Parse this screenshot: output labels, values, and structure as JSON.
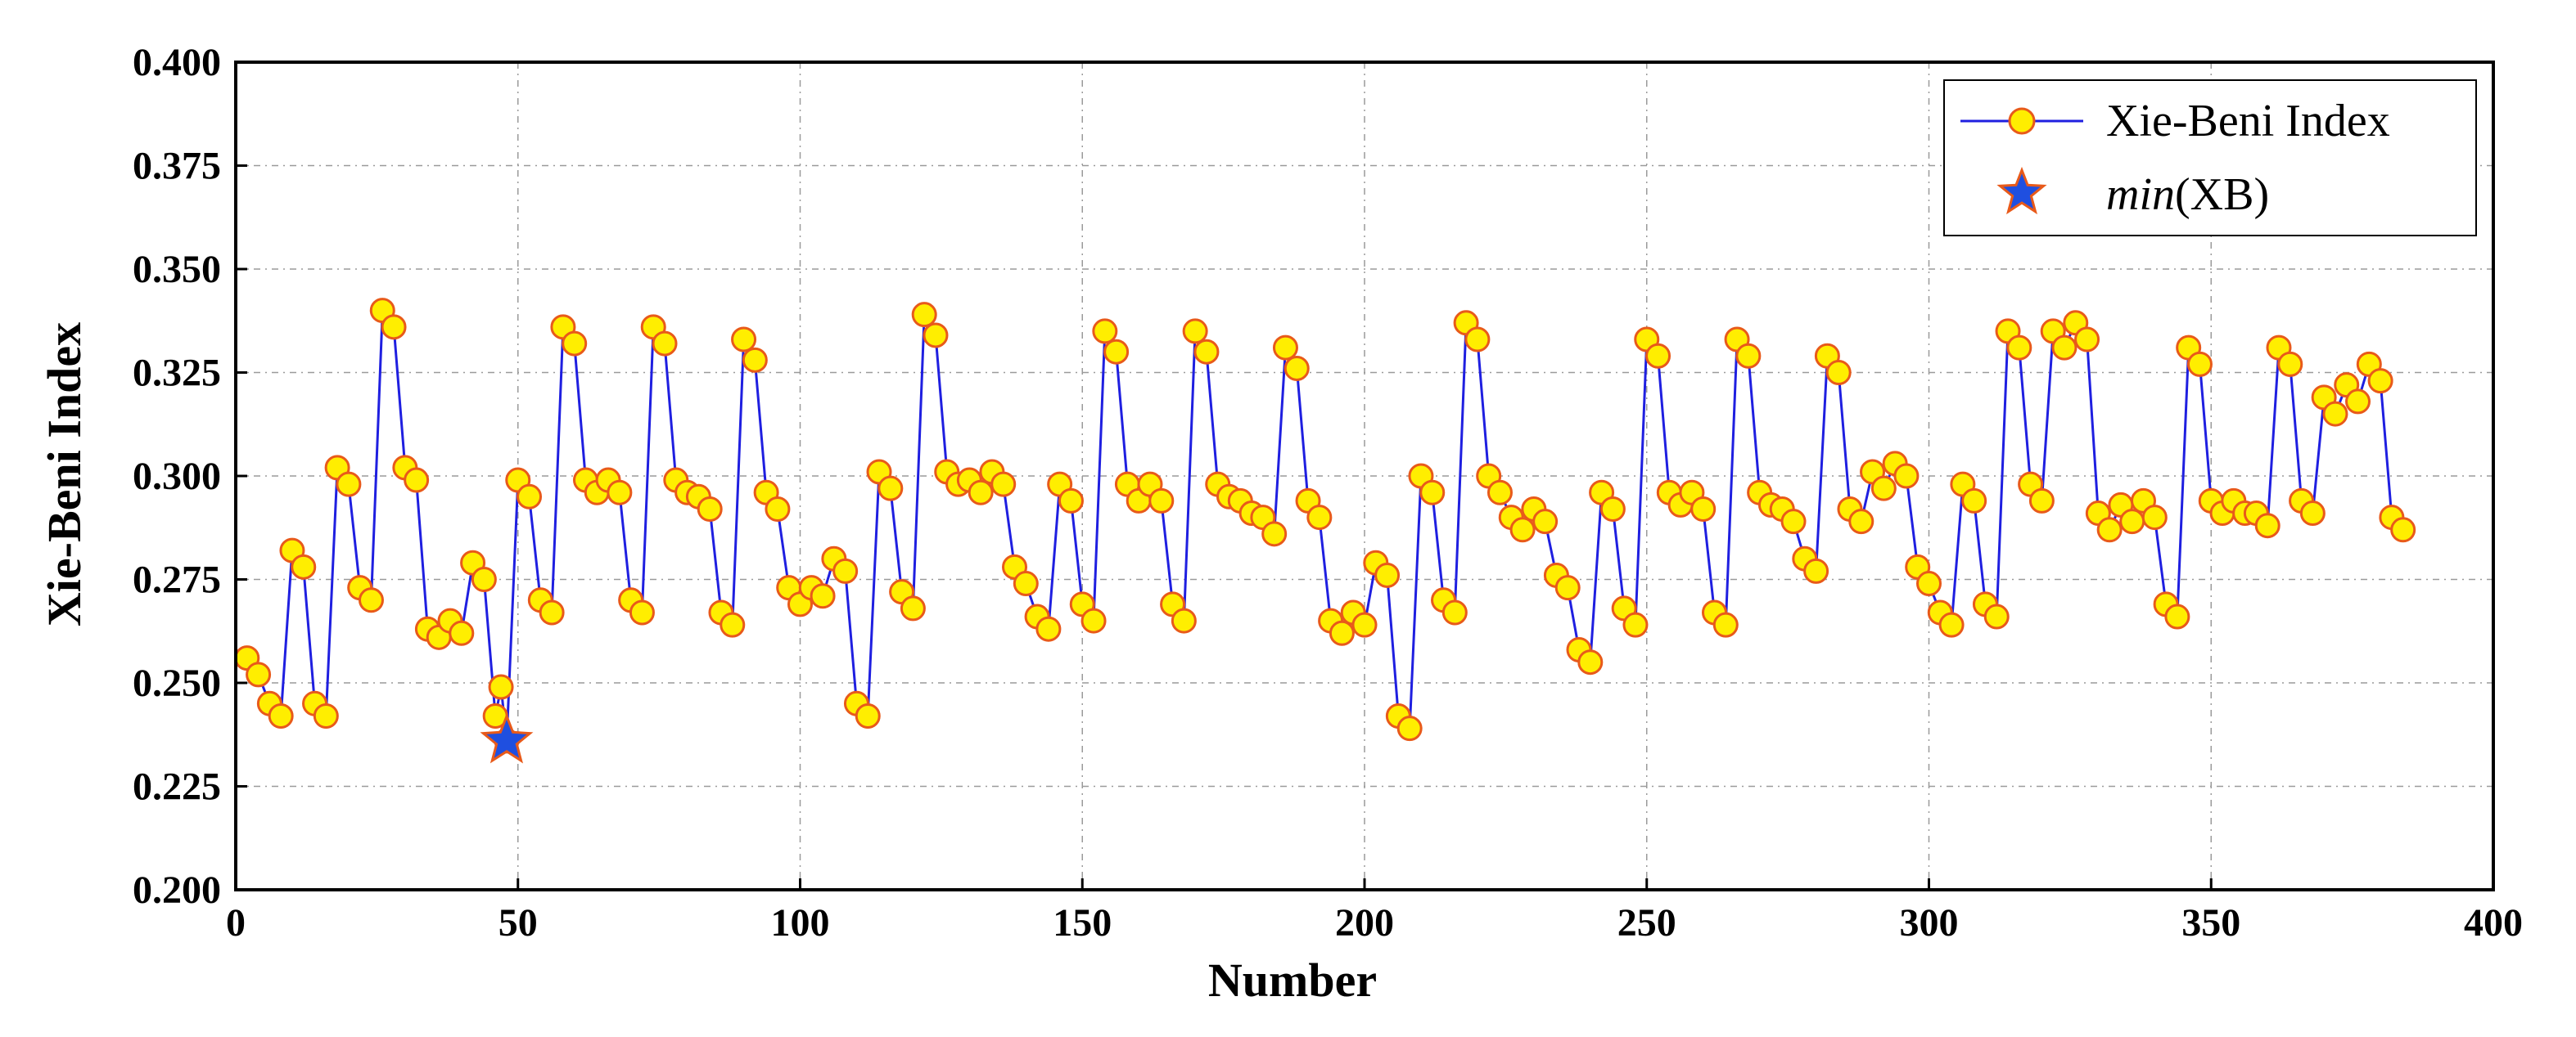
{
  "chart_data": {
    "type": "line",
    "title": "",
    "xlabel": "Number",
    "ylabel": "Xie-Beni Index",
    "xlim": [
      0,
      400
    ],
    "ylim": [
      0.2,
      0.4
    ],
    "x_ticks": [
      "0",
      "50",
      "100",
      "150",
      "200",
      "250",
      "300",
      "350",
      "400"
    ],
    "y_ticks": [
      "0.200",
      "0.225",
      "0.250",
      "0.275",
      "0.300",
      "0.325",
      "0.350",
      "0.375",
      "0.400"
    ],
    "grid": true,
    "legend_position": "top-right",
    "colors": {
      "line": "#1f1fe0",
      "marker_fill": "#ffee00",
      "marker_edge": "#e85a1a",
      "star_fill": "#1f4fe0",
      "star_edge": "#e85a1a"
    },
    "series": [
      {
        "name": "Xie-Beni Index",
        "x": [
          2,
          4,
          6,
          8,
          10,
          12,
          14,
          16,
          18,
          20,
          22,
          24,
          26,
          28,
          30,
          32,
          34,
          36,
          38,
          40,
          42,
          44,
          46,
          47,
          48,
          50,
          52,
          54,
          56,
          58,
          60,
          62,
          64,
          66,
          68,
          70,
          72,
          74,
          76,
          78,
          80,
          82,
          84,
          86,
          88,
          90,
          92,
          94,
          96,
          98,
          100,
          102,
          104,
          106,
          108,
          110,
          112,
          114,
          116,
          118,
          120,
          122,
          124,
          126,
          128,
          130,
          132,
          134,
          136,
          138,
          140,
          142,
          144,
          146,
          148,
          150,
          152,
          154,
          156,
          158,
          160,
          162,
          164,
          166,
          168,
          170,
          172,
          174,
          176,
          178,
          180,
          182,
          184,
          186,
          188,
          190,
          192,
          194,
          196,
          198,
          200,
          202,
          204,
          206,
          208,
          210,
          212,
          214,
          216,
          218,
          220,
          222,
          224,
          226,
          228,
          230,
          232,
          234,
          236,
          238,
          240,
          242,
          244,
          246,
          248,
          250,
          252,
          254,
          256,
          258,
          260,
          262,
          264,
          266,
          268,
          270,
          272,
          274,
          276,
          278,
          280,
          282,
          284,
          286,
          288,
          290,
          292,
          294,
          296,
          298,
          300,
          302,
          304,
          306,
          308,
          310,
          312,
          314,
          316,
          318,
          320,
          322,
          324,
          326,
          328,
          330,
          332,
          334,
          336,
          338,
          340,
          342,
          344,
          346,
          348,
          350,
          352,
          354,
          356,
          358,
          360,
          362,
          364,
          366,
          368,
          370,
          372,
          374,
          376,
          378,
          380,
          382,
          384
        ],
        "values": [
          0.256,
          0.252,
          0.245,
          0.242,
          0.282,
          0.278,
          0.245,
          0.242,
          0.302,
          0.298,
          0.273,
          0.27,
          0.34,
          0.336,
          0.302,
          0.299,
          0.263,
          0.261,
          0.265,
          0.262,
          0.279,
          0.275,
          0.242,
          0.249,
          0.236,
          0.299,
          0.295,
          0.27,
          0.267,
          0.336,
          0.332,
          0.299,
          0.296,
          0.299,
          0.296,
          0.27,
          0.267,
          0.336,
          0.332,
          0.299,
          0.296,
          0.295,
          0.292,
          0.267,
          0.264,
          0.333,
          0.328,
          0.296,
          0.292,
          0.273,
          0.269,
          0.273,
          0.271,
          0.28,
          0.277,
          0.245,
          0.242,
          0.301,
          0.297,
          0.272,
          0.268,
          0.339,
          0.334,
          0.301,
          0.298,
          0.299,
          0.296,
          0.301,
          0.298,
          0.278,
          0.274,
          0.266,
          0.263,
          0.298,
          0.294,
          0.269,
          0.265,
          0.335,
          0.33,
          0.298,
          0.294,
          0.298,
          0.294,
          0.269,
          0.265,
          0.335,
          0.33,
          0.298,
          0.295,
          0.294,
          0.291,
          0.29,
          0.286,
          0.331,
          0.326,
          0.294,
          0.29,
          0.265,
          0.262,
          0.267,
          0.264,
          0.279,
          0.276,
          0.242,
          0.239,
          0.3,
          0.296,
          0.27,
          0.267,
          0.337,
          0.333,
          0.3,
          0.296,
          0.29,
          0.287,
          0.292,
          0.289,
          0.276,
          0.273,
          0.258,
          0.255,
          0.296,
          0.292,
          0.268,
          0.264,
          0.333,
          0.329,
          0.296,
          0.293,
          0.296,
          0.292,
          0.267,
          0.264,
          0.333,
          0.329,
          0.296,
          0.293,
          0.292,
          0.289,
          0.28,
          0.277,
          0.329,
          0.325,
          0.292,
          0.289,
          0.301,
          0.297,
          0.303,
          0.3,
          0.278,
          0.274,
          0.267,
          0.264,
          0.298,
          0.294,
          0.269,
          0.266,
          0.335,
          0.331,
          0.298,
          0.294,
          0.335,
          0.331,
          0.337,
          0.333,
          0.291,
          0.287,
          0.293,
          0.289,
          0.294,
          0.29,
          0.269,
          0.266,
          0.331,
          0.327,
          0.294,
          0.291,
          0.294,
          0.291,
          0.291,
          0.288,
          0.331,
          0.327,
          0.294,
          0.291,
          0.319,
          0.315,
          0.322,
          0.318,
          0.327,
          0.323,
          0.29,
          0.287
        ]
      },
      {
        "name": "min(XB)",
        "name_italic": "min",
        "name_rest": "(XB)",
        "x": [
          48
        ],
        "values": [
          0.236
        ]
      }
    ]
  }
}
